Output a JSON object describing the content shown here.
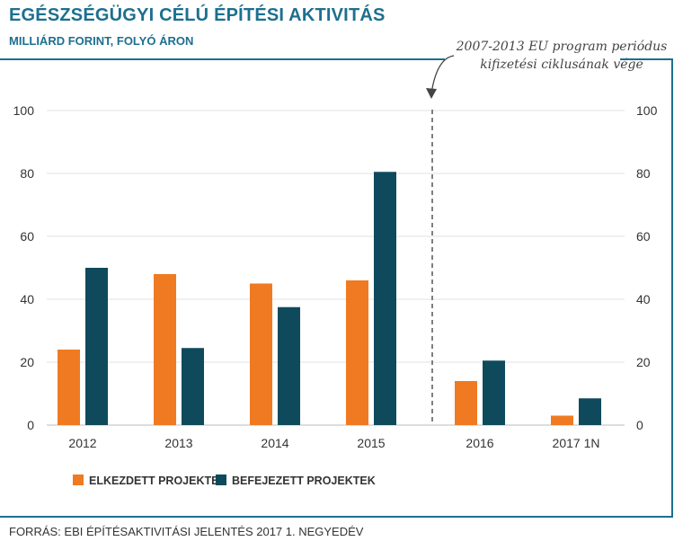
{
  "title": "EGÉSZSÉGÜGYI CÉLÚ ÉPÍTÉSI AKTIVITÁS",
  "subtitle": "MILLIÁRD FORINT, FOLYÓ ÁRON",
  "annotation": {
    "line1": "2007-2013 EU program periódus",
    "line2": "kifizetési ciklusának vége"
  },
  "source": "FORRÁS: EBI ÉPÍTÉSAKTIVITÁSI JELENTÉS 2017 1. NEGYEDÉV",
  "colors": {
    "accent": "#1d6f8f",
    "series_started": "#f07a21",
    "series_finished": "#0e4a5c",
    "gridline": "#e2e2e2"
  },
  "chart_data": {
    "type": "bar",
    "categories": [
      "2012",
      "2013",
      "2014",
      "2015",
      "2016",
      "2017 1N"
    ],
    "series": [
      {
        "name": "ELKEZDETT PROJEKTEK",
        "values": [
          24,
          48,
          45,
          46,
          14,
          3
        ]
      },
      {
        "name": "BEFEJEZETT PROJEKTEK",
        "values": [
          50,
          24.5,
          37.5,
          80.5,
          20.5,
          8.5
        ]
      }
    ],
    "ylim": [
      0,
      100
    ],
    "yticks": [
      0,
      20,
      40,
      60,
      80,
      100
    ],
    "y_axis_both_sides": true,
    "grid": true,
    "legend_placement": "bottom-left",
    "divider_after_category": "2015"
  }
}
